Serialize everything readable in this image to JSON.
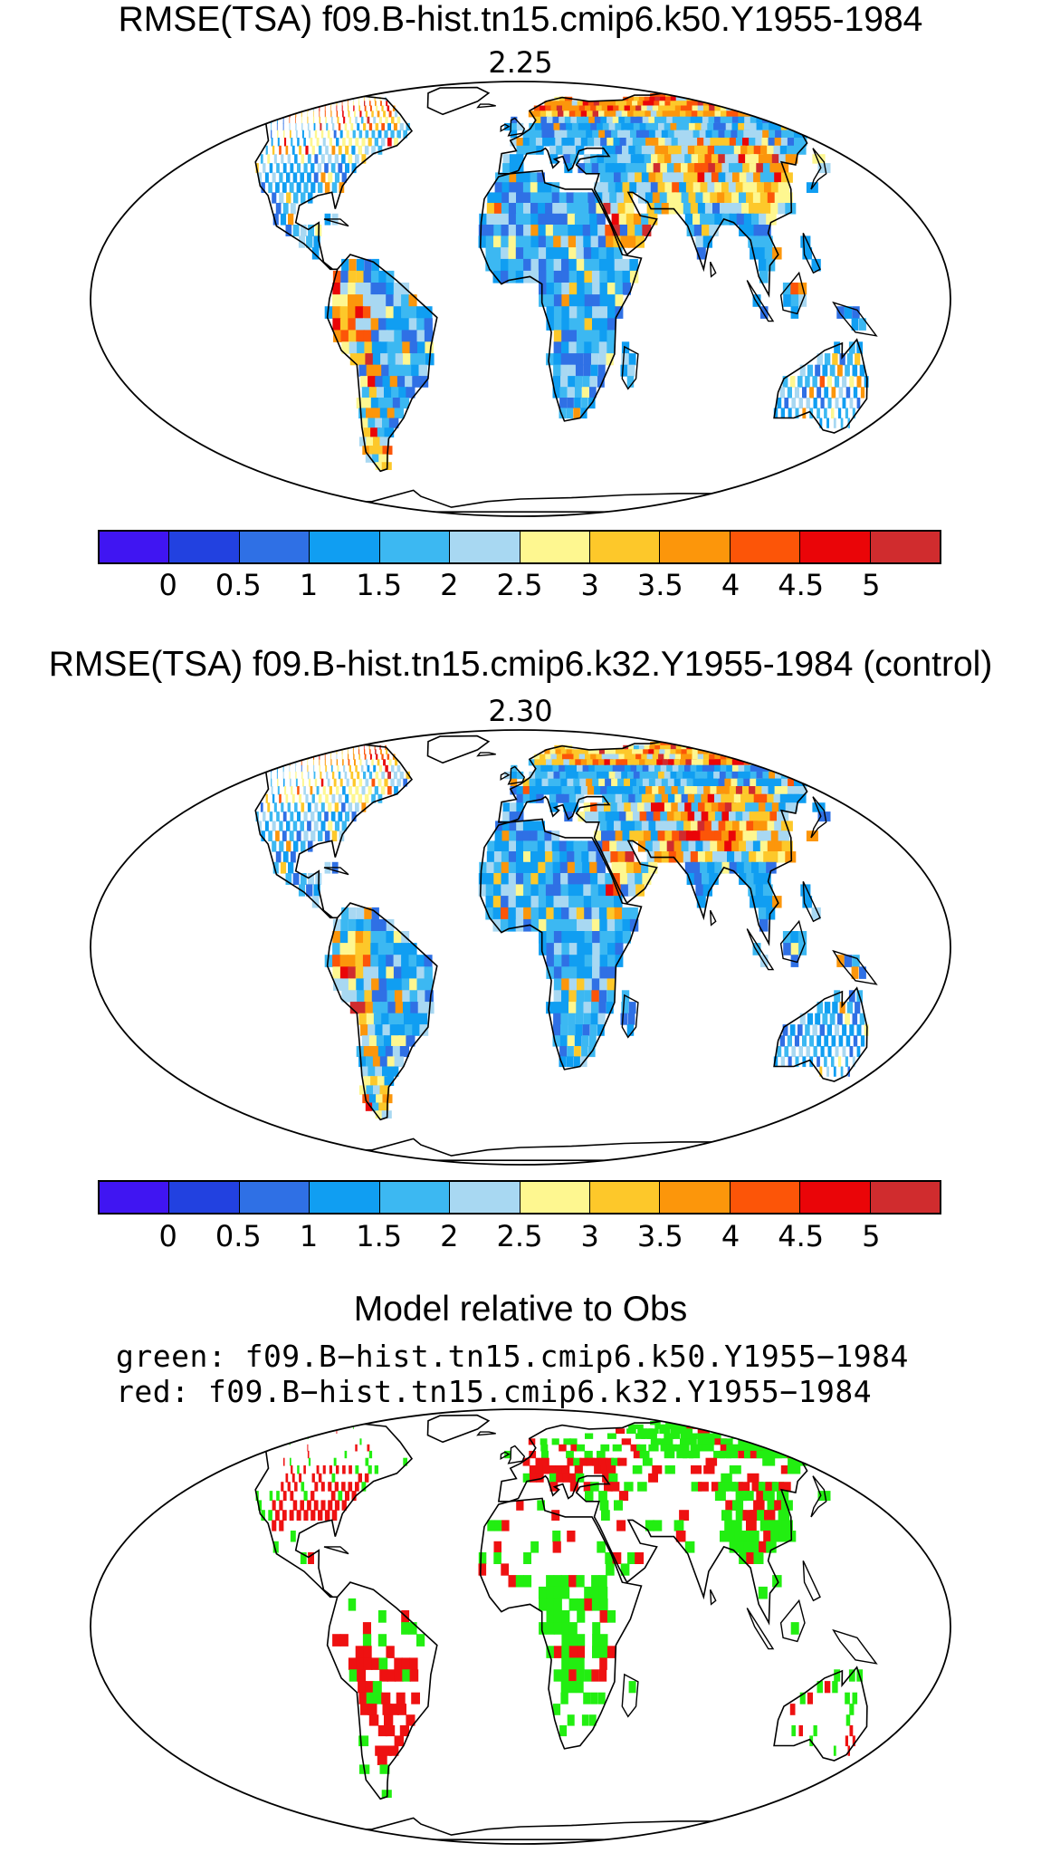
{
  "panels": [
    {
      "title": "RMSE(TSA) f09.B-hist.tn15.cmip6.k50.Y1955-1984",
      "value_label": "2.25"
    },
    {
      "title": "RMSE(TSA) f09.B-hist.tn15.cmip6.k32.Y1955-1984 (control)",
      "value_label": "2.30"
    }
  ],
  "colorbar": {
    "colors": [
      "#4015f2",
      "#2241e0",
      "#2f70e5",
      "#109ef2",
      "#3cb8f2",
      "#a8d8f2",
      "#fef790",
      "#fdc82a",
      "#fc960b",
      "#fc5508",
      "#ea0508",
      "#d02c2e"
    ],
    "labels": [
      "0",
      "0.5",
      "1",
      "1.5",
      "2",
      "2.5",
      "3",
      "3.5",
      "4",
      "4.5",
      "5"
    ]
  },
  "comparison": {
    "title": "Model relative to Obs",
    "legend_green": "green:  f09.B−hist.tn15.cmip6.k50.Y1955−1984",
    "legend_red": "red:  f09.B−hist.tn15.cmip6.k32.Y1955−1984",
    "colors": {
      "green": "#22ee11",
      "red": "#ee1111"
    }
  }
}
